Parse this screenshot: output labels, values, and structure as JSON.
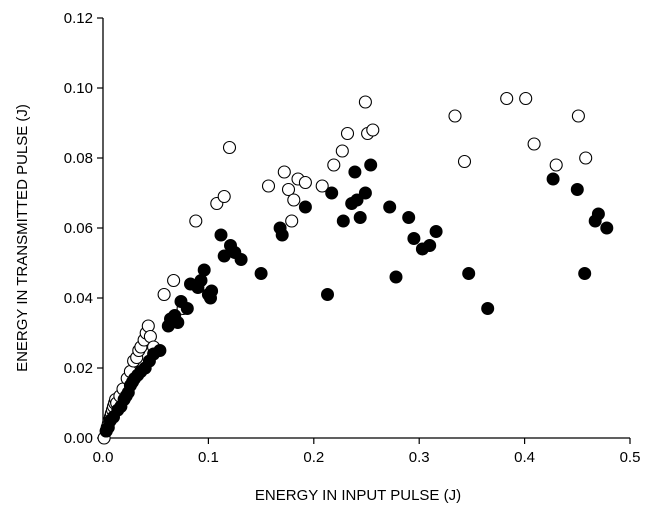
{
  "chart_data": {
    "type": "scatter",
    "xlabel": "ENERGY IN INPUT PULSE (J)",
    "ylabel": "ENERGY IN TRANSMITTED PULSE (J)",
    "xlim": [
      0,
      0.5
    ],
    "ylim": [
      0,
      0.12
    ],
    "x_ticks": [
      "0.0",
      "0.1",
      "0.2",
      "0.3",
      "0.4",
      "0.5"
    ],
    "y_ticks": [
      "0.00",
      "0.02",
      "0.04",
      "0.06",
      "0.08",
      "0.10",
      "0.12"
    ],
    "grid": false,
    "series": [
      {
        "marker": "open-circle",
        "color": "#000000",
        "points": [
          [
            0.001,
            0.0
          ],
          [
            0.003,
            0.002
          ],
          [
            0.004,
            0.003
          ],
          [
            0.005,
            0.004
          ],
          [
            0.006,
            0.005
          ],
          [
            0.007,
            0.006
          ],
          [
            0.008,
            0.007
          ],
          [
            0.009,
            0.008
          ],
          [
            0.01,
            0.009
          ],
          [
            0.011,
            0.01
          ],
          [
            0.012,
            0.011
          ],
          [
            0.013,
            0.01
          ],
          [
            0.016,
            0.012
          ],
          [
            0.019,
            0.014
          ],
          [
            0.023,
            0.017
          ],
          [
            0.026,
            0.019
          ],
          [
            0.029,
            0.022
          ],
          [
            0.032,
            0.023
          ],
          [
            0.034,
            0.025
          ],
          [
            0.036,
            0.026
          ],
          [
            0.039,
            0.028
          ],
          [
            0.041,
            0.03
          ],
          [
            0.043,
            0.032
          ],
          [
            0.045,
            0.029
          ],
          [
            0.048,
            0.026
          ],
          [
            0.058,
            0.041
          ],
          [
            0.067,
            0.045
          ],
          [
            0.076,
            0.037
          ],
          [
            0.088,
            0.062
          ],
          [
            0.108,
            0.067
          ],
          [
            0.115,
            0.069
          ],
          [
            0.12,
            0.083
          ],
          [
            0.157,
            0.072
          ],
          [
            0.172,
            0.076
          ],
          [
            0.176,
            0.071
          ],
          [
            0.179,
            0.062
          ],
          [
            0.181,
            0.068
          ],
          [
            0.185,
            0.074
          ],
          [
            0.192,
            0.073
          ],
          [
            0.208,
            0.072
          ],
          [
            0.219,
            0.078
          ],
          [
            0.227,
            0.082
          ],
          [
            0.232,
            0.087
          ],
          [
            0.249,
            0.096
          ],
          [
            0.251,
            0.087
          ],
          [
            0.256,
            0.088
          ],
          [
            0.334,
            0.092
          ],
          [
            0.343,
            0.079
          ],
          [
            0.383,
            0.097
          ],
          [
            0.401,
            0.097
          ],
          [
            0.409,
            0.084
          ],
          [
            0.43,
            0.078
          ],
          [
            0.451,
            0.092
          ],
          [
            0.458,
            0.08
          ]
        ]
      },
      {
        "marker": "filled-circle",
        "color": "#000000",
        "points": [
          [
            0.003,
            0.002
          ],
          [
            0.005,
            0.003
          ],
          [
            0.007,
            0.005
          ],
          [
            0.01,
            0.006
          ],
          [
            0.014,
            0.008
          ],
          [
            0.017,
            0.009
          ],
          [
            0.02,
            0.011
          ],
          [
            0.022,
            0.012
          ],
          [
            0.024,
            0.013
          ],
          [
            0.026,
            0.015
          ],
          [
            0.028,
            0.016
          ],
          [
            0.03,
            0.017
          ],
          [
            0.033,
            0.018
          ],
          [
            0.036,
            0.019
          ],
          [
            0.04,
            0.02
          ],
          [
            0.044,
            0.022
          ],
          [
            0.048,
            0.024
          ],
          [
            0.054,
            0.025
          ],
          [
            0.062,
            0.032
          ],
          [
            0.064,
            0.034
          ],
          [
            0.068,
            0.035
          ],
          [
            0.071,
            0.033
          ],
          [
            0.074,
            0.039
          ],
          [
            0.08,
            0.037
          ],
          [
            0.083,
            0.044
          ],
          [
            0.09,
            0.043
          ],
          [
            0.093,
            0.045
          ],
          [
            0.096,
            0.048
          ],
          [
            0.1,
            0.041
          ],
          [
            0.102,
            0.04
          ],
          [
            0.103,
            0.042
          ],
          [
            0.112,
            0.058
          ],
          [
            0.115,
            0.052
          ],
          [
            0.121,
            0.055
          ],
          [
            0.125,
            0.053
          ],
          [
            0.131,
            0.051
          ],
          [
            0.15,
            0.047
          ],
          [
            0.168,
            0.06
          ],
          [
            0.17,
            0.058
          ],
          [
            0.192,
            0.066
          ],
          [
            0.213,
            0.041
          ],
          [
            0.217,
            0.07
          ],
          [
            0.228,
            0.062
          ],
          [
            0.236,
            0.067
          ],
          [
            0.239,
            0.076
          ],
          [
            0.241,
            0.068
          ],
          [
            0.244,
            0.063
          ],
          [
            0.249,
            0.07
          ],
          [
            0.254,
            0.078
          ],
          [
            0.272,
            0.066
          ],
          [
            0.278,
            0.046
          ],
          [
            0.29,
            0.063
          ],
          [
            0.295,
            0.057
          ],
          [
            0.303,
            0.054
          ],
          [
            0.31,
            0.055
          ],
          [
            0.316,
            0.059
          ],
          [
            0.347,
            0.047
          ],
          [
            0.365,
            0.037
          ],
          [
            0.427,
            0.074
          ],
          [
            0.45,
            0.071
          ],
          [
            0.457,
            0.047
          ],
          [
            0.467,
            0.062
          ],
          [
            0.47,
            0.064
          ],
          [
            0.478,
            0.06
          ]
        ]
      }
    ]
  }
}
